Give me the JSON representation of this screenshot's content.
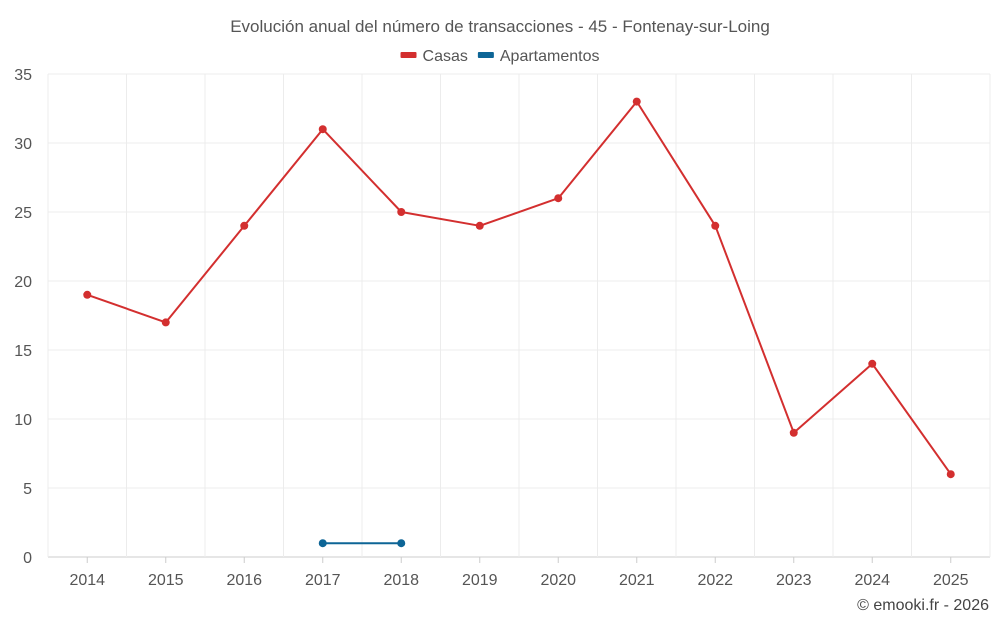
{
  "chart_data": {
    "type": "line",
    "title": "Evolución anual del número de transacciones - 45 - Fontenay-sur-Loing",
    "xlabel": "",
    "ylabel": "",
    "categories": [
      "2014",
      "2015",
      "2016",
      "2017",
      "2018",
      "2019",
      "2020",
      "2021",
      "2022",
      "2023",
      "2024",
      "2025"
    ],
    "ylim": [
      0,
      35
    ],
    "yticks": [
      0,
      5,
      10,
      15,
      20,
      25,
      30,
      35
    ],
    "grid": true,
    "legend_position": "top-center",
    "series": [
      {
        "name": "Casas",
        "color": "#d32f2f",
        "values": [
          19,
          17,
          24,
          31,
          25,
          24,
          26,
          33,
          24,
          9,
          14,
          6
        ]
      },
      {
        "name": "Apartamentos",
        "color": "#0d6596",
        "values": [
          null,
          null,
          null,
          1,
          1,
          null,
          null,
          null,
          null,
          null,
          null,
          null
        ]
      }
    ]
  },
  "credit": "© emooki.fr - 2026"
}
